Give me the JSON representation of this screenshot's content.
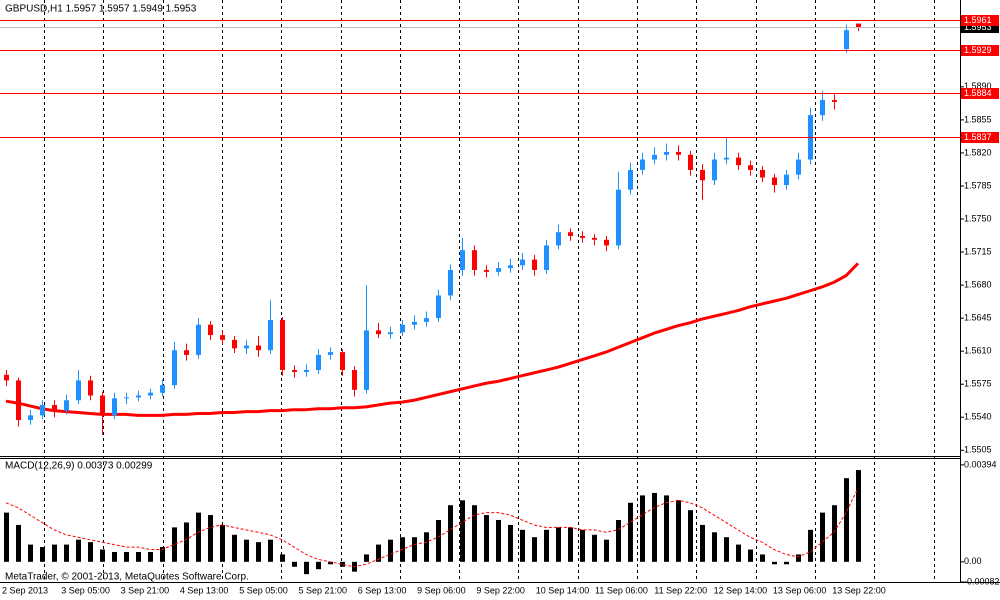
{
  "chart_data": [
    {
      "type": "candlestick",
      "title": "GBPUSD,H1  1.5957 1.5957 1.5949 1.5953",
      "open": [
        1.5585,
        1.5579,
        1.5537,
        1.5542,
        1.5553,
        1.5547,
        1.5558,
        1.5579,
        1.5563,
        1.5542,
        1.556,
        1.5561,
        1.5563,
        1.5566,
        1.5574,
        1.5611,
        1.5606,
        1.5638,
        1.5627,
        1.5622,
        1.5613,
        1.5616,
        1.5611,
        1.5643,
        1.559,
        1.5588,
        1.559,
        1.5606,
        1.5609,
        1.559,
        1.5569,
        1.5632,
        1.5628,
        1.563,
        1.5638,
        1.5641,
        1.5645,
        1.5669,
        1.5696,
        1.5717,
        1.5696,
        1.5694,
        1.5698,
        1.5701,
        1.5707,
        1.5696,
        1.5722,
        1.5736,
        1.5732,
        1.573,
        1.5728,
        1.5722,
        1.5781,
        1.5802,
        1.5813,
        1.5818,
        1.5821,
        1.5818,
        1.5802,
        1.5791,
        1.5813,
        1.5815,
        1.5807,
        1.5802,
        1.5794,
        1.5786,
        1.5797,
        1.5813,
        1.586,
        1.5876,
        1.593,
        1.5957
      ],
      "high": [
        1.559,
        1.5582,
        1.5548,
        1.5558,
        1.5558,
        1.5564,
        1.559,
        1.5584,
        1.5567,
        1.5566,
        1.5566,
        1.5568,
        1.557,
        1.558,
        1.562,
        1.5618,
        1.5645,
        1.5642,
        1.5632,
        1.5626,
        1.5622,
        1.5626,
        1.5664,
        1.5646,
        1.5595,
        1.5596,
        1.5612,
        1.5614,
        1.5612,
        1.5594,
        1.568,
        1.564,
        1.5636,
        1.5643,
        1.5648,
        1.5652,
        1.5675,
        1.5702,
        1.573,
        1.5722,
        1.5701,
        1.5704,
        1.5708,
        1.5714,
        1.5712,
        1.5728,
        1.5744,
        1.574,
        1.5737,
        1.5734,
        1.5732,
        1.58,
        1.581,
        1.582,
        1.5826,
        1.583,
        1.5828,
        1.5822,
        1.5808,
        1.582,
        1.5836,
        1.582,
        1.5812,
        1.5806,
        1.5798,
        1.5802,
        1.582,
        1.5868,
        1.5886,
        1.5882,
        1.5956,
        1.5957
      ],
      "low": [
        1.5573,
        1.553,
        1.5532,
        1.5538,
        1.554,
        1.5543,
        1.5554,
        1.5558,
        1.5521,
        1.5538,
        1.5554,
        1.5557,
        1.5559,
        1.5562,
        1.557,
        1.56,
        1.5602,
        1.5622,
        1.5617,
        1.5608,
        1.5607,
        1.5604,
        1.5607,
        1.5584,
        1.5582,
        1.5583,
        1.5586,
        1.5601,
        1.5584,
        1.5562,
        1.5565,
        1.5624,
        1.5623,
        1.5626,
        1.5633,
        1.5636,
        1.5641,
        1.5664,
        1.569,
        1.569,
        1.5688,
        1.569,
        1.5693,
        1.5696,
        1.569,
        1.5692,
        1.5718,
        1.5727,
        1.5725,
        1.5722,
        1.5716,
        1.5718,
        1.5776,
        1.5797,
        1.5808,
        1.5812,
        1.5812,
        1.5796,
        1.577,
        1.5786,
        1.5808,
        1.5802,
        1.5796,
        1.5789,
        1.5778,
        1.5781,
        1.5792,
        1.5808,
        1.5854,
        1.5866,
        1.5926,
        1.5949
      ],
      "close": [
        1.5579,
        1.5537,
        1.5542,
        1.5553,
        1.5547,
        1.5558,
        1.5579,
        1.5563,
        1.5542,
        1.556,
        1.5561,
        1.5563,
        1.5566,
        1.5574,
        1.5611,
        1.5606,
        1.5638,
        1.5627,
        1.5622,
        1.5613,
        1.5616,
        1.5611,
        1.5643,
        1.559,
        1.5588,
        1.559,
        1.5606,
        1.5609,
        1.559,
        1.5569,
        1.5632,
        1.5628,
        1.563,
        1.5638,
        1.5641,
        1.5645,
        1.5669,
        1.5696,
        1.5717,
        1.5696,
        1.5694,
        1.5698,
        1.5701,
        1.5707,
        1.5696,
        1.5722,
        1.5736,
        1.5732,
        1.573,
        1.5728,
        1.5722,
        1.5781,
        1.5802,
        1.5813,
        1.5818,
        1.5821,
        1.5818,
        1.5802,
        1.5791,
        1.5813,
        1.5815,
        1.5807,
        1.5802,
        1.5794,
        1.5786,
        1.5797,
        1.5813,
        1.586,
        1.5876,
        1.5874,
        1.595,
        1.5953
      ],
      "up_color": "#1e90ff",
      "down_color": "#ff0000",
      "overlays": [
        {
          "color": "#ff0000",
          "values": [
            1.5557,
            1.5555,
            1.5552,
            1.5549,
            1.5547,
            1.5546,
            1.5545,
            1.5544,
            1.5543,
            1.5543,
            1.5543,
            1.5542,
            1.5542,
            1.5542,
            1.5543,
            1.5543,
            1.5544,
            1.5544,
            1.5545,
            1.5545,
            1.5546,
            1.5546,
            1.5547,
            1.5547,
            1.5548,
            1.5548,
            1.5549,
            1.5549,
            1.555,
            1.555,
            1.5551,
            1.5553,
            1.5555,
            1.5556,
            1.5558,
            1.5561,
            1.5564,
            1.5567,
            1.557,
            1.5573,
            1.5576,
            1.5578,
            1.5581,
            1.5584,
            1.5587,
            1.559,
            1.5593,
            1.5597,
            1.5601,
            1.5605,
            1.5609,
            1.5614,
            1.5619,
            1.5624,
            1.5629,
            1.5633,
            1.5637,
            1.564,
            1.5644,
            1.5647,
            1.565,
            1.5653,
            1.5657,
            1.566,
            1.5663,
            1.5666,
            1.567,
            1.5674,
            1.5678,
            1.5683,
            1.569,
            1.5703
          ]
        }
      ],
      "levels": [
        1.5961,
        1.5929,
        1.5884,
        1.5837
      ],
      "level_color": "#ff0000",
      "ylim": [
        1.55,
        1.5982
      ],
      "yticks": [
        1.5505,
        {
          "value": 1.554,
          "label": "1.5540"
        },
        1.5575,
        {
          "value": 1.561,
          "label": "1.5610"
        },
        1.5645,
        {
          "value": 1.568,
          "label": "1.5680"
        },
        1.5715,
        {
          "value": 1.575,
          "label": "1.5750"
        },
        1.5785,
        {
          "value": 1.582,
          "label": "1.5820"
        },
        1.5855,
        {
          "value": 1.589,
          "label": "1.5890"
        }
      ]
    },
    {
      "type": "macd",
      "title": "MACD(12,26,9) 0.00373 0.00299",
      "series": [
        {
          "style": "histogram",
          "color": "#000000",
          "values": [
            0.002,
            0.0015,
            0.0007,
            0.0006,
            0.0007,
            0.0007,
            0.0009,
            0.0008,
            0.0005,
            0.0004,
            0.0004,
            0.0004,
            0.0004,
            0.0006,
            0.0014,
            0.0016,
            0.002,
            0.0019,
            0.0015,
            0.0011,
            0.0009,
            0.0008,
            0.0009,
            0.0003,
            -0.0002,
            -0.0005,
            -0.0003,
            -0.0001,
            -0.0002,
            -0.0004,
            0.0003,
            0.0007,
            0.0009,
            0.001,
            0.001,
            0.0012,
            0.0017,
            0.0023,
            0.0025,
            0.0023,
            0.0019,
            0.0017,
            0.0015,
            0.0013,
            0.001,
            0.0013,
            0.0014,
            0.0014,
            0.0013,
            0.0011,
            0.0009,
            0.0017,
            0.0024,
            0.0027,
            0.0028,
            0.0027,
            0.0025,
            0.0021,
            0.0015,
            0.0012,
            0.001,
            0.0007,
            0.0005,
            0.0003,
            -0.0001,
            -0.0001,
            0.0003,
            0.0013,
            0.002,
            0.0023,
            0.0034,
            0.00373
          ]
        },
        {
          "style": "dashed-line",
          "color": "#ff0000",
          "values": [
            0.0024,
            0.0022,
            0.0019,
            0.0016,
            0.0013,
            0.0011,
            0.001,
            0.0009,
            0.0008,
            0.0007,
            0.0006,
            0.0006,
            0.0005,
            0.0005,
            0.0007,
            0.0009,
            0.0012,
            0.0014,
            0.0015,
            0.0014,
            0.0013,
            0.0012,
            0.0011,
            0.0009,
            0.0006,
            0.0003,
            0.0001,
            0,
            -0.0001,
            -0.0002,
            -0.0001,
            0.0001,
            0.0003,
            0.0005,
            0.0007,
            0.0008,
            0.001,
            0.0013,
            0.0016,
            0.0019,
            0.002,
            0.002,
            0.0019,
            0.0017,
            0.0015,
            0.0014,
            0.0014,
            0.0014,
            0.0013,
            0.0013,
            0.0012,
            0.0013,
            0.0016,
            0.0019,
            0.0022,
            0.0024,
            0.0025,
            0.0024,
            0.0022,
            0.0019,
            0.0016,
            0.0013,
            0.001,
            0.0008,
            0.0005,
            0.0003,
            0.0002,
            0.0004,
            0.0008,
            0.0012,
            0.002,
            0.00299
          ]
        }
      ],
      "ylim": [
        -0.00082,
        0.00422
      ],
      "yticks": [
        0.00394,
        {
          "value": 0,
          "label": "0.00"
        },
        -0.00082
      ]
    }
  ],
  "x_axis_labels": [
    "2 Sep 2013",
    "3 Sep 05:00",
    "3 Sep 21:00",
    "4 Sep 13:00",
    "5 Sep 05:00",
    "5 Sep 21:00",
    "6 Sep 13:00",
    "9 Sep 06:00",
    "9 Sep 22:00",
    "10 Sep 14:00",
    "11 Sep 06:00",
    "11 Sep 22:00",
    "12 Sep 14:00",
    "13 Sep 06:00",
    "13 Sep 22:00"
  ],
  "copyright": "MetaTrader, © 2001-2013, MetaQuotes Software Corp."
}
